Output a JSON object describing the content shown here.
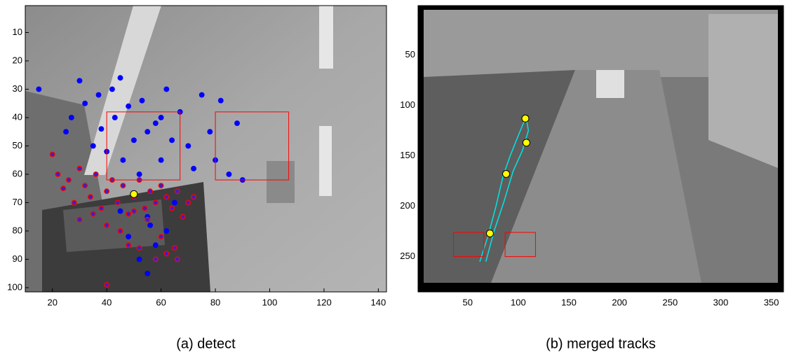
{
  "chart_data": [
    {
      "type": "scatter",
      "caption": "(a) detect",
      "xlim": [
        10,
        143
      ],
      "ylim": [
        101.5,
        0.5
      ],
      "xticks": [
        20,
        40,
        60,
        80,
        100,
        120,
        140
      ],
      "yticks": [
        10,
        20,
        30,
        40,
        50,
        60,
        70,
        80,
        90,
        100
      ],
      "series": [
        {
          "color": "#0000ff",
          "edgecolor": "#0000ff",
          "x": [
            15,
            25,
            27,
            30,
            32,
            35,
            37,
            38,
            40,
            42,
            43,
            45,
            46,
            48,
            50,
            52,
            53,
            55,
            56,
            58,
            60,
            62,
            64,
            65,
            67,
            70,
            72,
            75,
            78,
            80,
            82,
            85,
            88,
            90,
            48,
            52,
            55,
            58,
            62,
            45,
            55,
            60
          ],
          "y": [
            30,
            45,
            40,
            27,
            35,
            50,
            32,
            44,
            52,
            30,
            40,
            26,
            55,
            36,
            48,
            60,
            34,
            45,
            78,
            42,
            55,
            30,
            48,
            70,
            38,
            50,
            58,
            32,
            45,
            55,
            34,
            60,
            42,
            62,
            82,
            90,
            75,
            85,
            80,
            73,
            95,
            40
          ]
        },
        {
          "color": "#3a1fc8",
          "edgecolor": "#ff0000",
          "x": [
            20,
            22,
            24,
            26,
            28,
            30,
            32,
            34,
            36,
            38,
            40,
            42,
            44,
            46,
            48,
            50,
            52,
            54,
            56,
            58,
            60,
            62,
            64,
            66,
            68,
            70,
            72,
            30,
            35,
            40,
            45,
            50,
            55,
            60,
            65,
            48,
            52,
            58,
            62,
            66,
            40
          ],
          "y": [
            53,
            60,
            65,
            62,
            70,
            58,
            64,
            68,
            60,
            72,
            66,
            62,
            70,
            64,
            74,
            68,
            62,
            72,
            66,
            70,
            64,
            68,
            72,
            66,
            75,
            70,
            68,
            76,
            74,
            78,
            80,
            73,
            76,
            82,
            86,
            85,
            86,
            90,
            88,
            90,
            99
          ]
        },
        {
          "color": "#ffff00",
          "edgecolor": "#000000",
          "x": [
            50
          ],
          "y": [
            67
          ]
        }
      ],
      "boxes": {
        "color": "#ff0000",
        "items": [
          [
            40,
            38,
            67,
            62
          ],
          [
            80,
            38,
            107,
            62
          ]
        ]
      },
      "lines": []
    },
    {
      "type": "scatter",
      "caption": "(b) merged tracks",
      "xlim": [
        1,
        362
      ],
      "ylim": [
        285,
        1
      ],
      "xticks": [
        50,
        100,
        150,
        200,
        250,
        300,
        350
      ],
      "yticks": [
        50,
        100,
        150,
        200,
        250
      ],
      "series": [
        {
          "color": "#ffff00",
          "edgecolor": "#000000",
          "x": [
            107,
            108,
            88,
            72
          ],
          "y": [
            113,
            137,
            168,
            227
          ]
        }
      ],
      "boxes": {
        "color": "#ff0000",
        "items": [
          [
            36,
            226,
            66,
            250
          ],
          [
            87,
            226,
            117,
            250
          ]
        ]
      },
      "lines": [
        {
          "color": "#00e5e5",
          "x": [
            62,
            70,
            78,
            85,
            92,
            100,
            107
          ],
          "y": [
            255,
            230,
            200,
            170,
            150,
            130,
            113
          ]
        },
        {
          "color": "#00e5e5",
          "x": [
            68,
            76,
            86,
            95,
            104,
            110,
            108
          ],
          "y": [
            255,
            225,
            195,
            165,
            145,
            125,
            113
          ]
        }
      ]
    }
  ]
}
